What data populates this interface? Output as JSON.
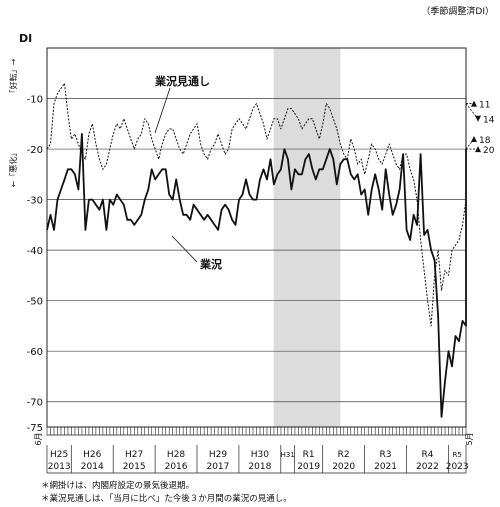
{
  "header": {
    "seasonal_note": "（季節調整済DI）"
  },
  "chart_data": {
    "type": "line",
    "ylabel": "DI",
    "ylim": [
      -75,
      0
    ],
    "yticks": [
      -10,
      -20,
      -30,
      -40,
      -50,
      -60,
      -70,
      -75
    ],
    "grid": true,
    "y_axis_up_label": "「好転」→",
    "y_axis_down_label": "←「悪化」",
    "start_month_label": "6月",
    "end_month_label": "5月",
    "eras": [
      {
        "era": "H25",
        "year": "2013",
        "start": 2013.42
      },
      {
        "era": "H26",
        "year": "2014",
        "start": 2014.0
      },
      {
        "era": "H27",
        "year": "2015",
        "start": 2015.0
      },
      {
        "era": "H28",
        "year": "2016",
        "start": 2016.0
      },
      {
        "era": "H29",
        "year": "2017",
        "start": 2017.0
      },
      {
        "era": "H30",
        "year": "2018",
        "start": 2018.0
      },
      {
        "era": "H31",
        "year": "",
        "start": 2019.0
      },
      {
        "era": "R1",
        "year": "2019",
        "start": 2019.33
      },
      {
        "era": "R2",
        "year": "2020",
        "start": 2020.0
      },
      {
        "era": "R3",
        "year": "2021",
        "start": 2021.0
      },
      {
        "era": "R4",
        "year": "2022",
        "start": 2022.0
      },
      {
        "era": "R5",
        "year": "2023",
        "start": 2023.0
      }
    ],
    "x_range": [
      2013.42,
      2023.42
    ],
    "recession_band": [
      2018.83,
      2020.42
    ],
    "series": [
      {
        "name": "業況",
        "style": "solid",
        "color": "#111111",
        "x_start": 2013.42,
        "step": 0.08333,
        "values": [
          -36,
          -33,
          -36,
          -30,
          -28,
          -26,
          -24,
          -24,
          -25,
          -28,
          -17,
          -36,
          -30,
          -30,
          -31,
          -32,
          -30,
          -36,
          -30,
          -31,
          -29,
          -30,
          -31,
          -34,
          -34,
          -35,
          -34,
          -33,
          -30,
          -28,
          -24,
          -26,
          -25,
          -24,
          -24,
          -29,
          -30,
          -26,
          -30,
          -33,
          -33,
          -34,
          -31,
          -32,
          -33,
          -34,
          -33,
          -34,
          -35,
          -36,
          -32,
          -31,
          -32,
          -34,
          -35,
          -30,
          -29,
          -26,
          -29,
          -30,
          -30,
          -26,
          -24,
          -26,
          -22,
          -27,
          -25,
          -24,
          -20,
          -22,
          -28,
          -24,
          -25,
          -25,
          -22,
          -21,
          -24,
          -26,
          -24,
          -24,
          -22,
          -20,
          -22,
          -27,
          -23,
          -22,
          -22,
          -25,
          -26,
          -25,
          -29,
          -28,
          -33,
          -28,
          -25,
          -28,
          -32,
          -24,
          -29,
          -33,
          -31,
          -28,
          -21,
          -36,
          -38,
          -33,
          -35,
          -21,
          -37,
          -36,
          -40,
          -42,
          -53,
          -73,
          -66,
          -60,
          -63,
          -57,
          -58,
          -54,
          -55,
          -52,
          -50,
          -47,
          -51,
          -48,
          -44,
          -44,
          -45,
          -42,
          -41,
          -40,
          -42,
          -38,
          -36,
          -37,
          -35,
          -36,
          -39,
          -33,
          -34,
          -33,
          -31,
          -35,
          -32,
          -30,
          -28,
          -29,
          -27,
          -32,
          -34,
          -30,
          -31,
          -28,
          -32,
          -28,
          -31,
          -30,
          -32,
          -29,
          -27,
          -25,
          -22,
          -20
        ]
      },
      {
        "name": "業況見通し",
        "style": "dotted",
        "color": "#111111",
        "x_start": 2013.42,
        "step": 0.08333,
        "values": [
          -20,
          -19,
          -11,
          -9,
          -8,
          -7,
          -13,
          -18,
          -17,
          -19,
          -21,
          -22,
          -17,
          -15,
          -19,
          -22,
          -24,
          -23,
          -20,
          -17,
          -15,
          -16,
          -14,
          -16,
          -18,
          -20,
          -18,
          -17,
          -14,
          -15,
          -18,
          -20,
          -22,
          -19,
          -17,
          -16,
          -16,
          -18,
          -20,
          -21,
          -19,
          -17,
          -16,
          -15,
          -19,
          -21,
          -22,
          -20,
          -19,
          -17,
          -19,
          -21,
          -20,
          -16,
          -15,
          -14,
          -15,
          -16,
          -14,
          -12,
          -11,
          -13,
          -15,
          -18,
          -16,
          -14,
          -14,
          -16,
          -14,
          -12,
          -12,
          -13,
          -14,
          -16,
          -15,
          -14,
          -14,
          -16,
          -18,
          -15,
          -11,
          -12,
          -14,
          -16,
          -19,
          -21,
          -22,
          -18,
          -20,
          -23,
          -22,
          -25,
          -22,
          -19,
          -20,
          -22,
          -23,
          -21,
          -19,
          -21,
          -23,
          -24,
          -21,
          -21,
          -24,
          -26,
          -30,
          -38,
          -44,
          -50,
          -55,
          -45,
          -40,
          -48,
          -44,
          -45,
          -40,
          -39,
          -38,
          -35,
          -30,
          -28,
          -30,
          -27,
          -29,
          -25,
          -27,
          -22,
          -22,
          -24,
          -25,
          -27,
          -22,
          -20,
          -24,
          -21,
          -19,
          -22,
          -28,
          -25,
          -22,
          -19,
          -22,
          -24,
          -23,
          -25,
          -24,
          -22,
          -21,
          -22,
          -24,
          -20,
          -19,
          -24,
          -22,
          -25,
          -24,
          -21,
          -25,
          -22,
          -17,
          -14,
          -11,
          -10,
          -10,
          -11
        ]
      }
    ],
    "forecast_arrows": [
      {
        "value": -11,
        "label": "11",
        "dir": "up"
      },
      {
        "value": -14,
        "label": "14",
        "dir": "down"
      },
      {
        "value": -18,
        "label": "18",
        "dir": "up"
      },
      {
        "value": -20,
        "label": "20",
        "dir": "up"
      }
    ],
    "series_labels": [
      {
        "text": "業況見通し",
        "series": 1
      },
      {
        "text": "業況",
        "series": 0
      }
    ]
  },
  "footnotes": [
    "＊網掛けは、内閣府設定の景気後退期。",
    "＊業況見通しは、「当月に比べ」た今後３か月間の業況の見通し。"
  ]
}
